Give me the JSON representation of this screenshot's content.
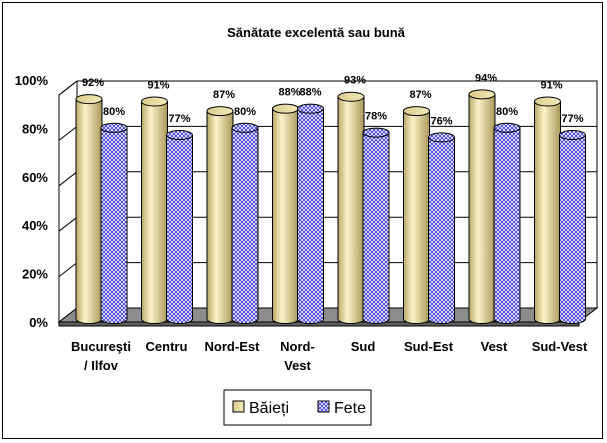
{
  "chart_data": {
    "type": "bar",
    "title": "Sănătate excelentă sau bună",
    "categories": [
      [
        "Bucureşti",
        "/ Ilfov"
      ],
      [
        "Centru"
      ],
      [
        "Nord-Est"
      ],
      [
        "Nord-",
        "Vest"
      ],
      [
        "Sud"
      ],
      [
        "Sud-Est"
      ],
      [
        "Vest"
      ],
      [
        "Sud-Vest"
      ]
    ],
    "series": [
      {
        "name": "Băieți",
        "values": [
          92,
          91,
          87,
          88,
          93,
          87,
          94,
          91
        ],
        "labels": [
          "92%",
          "91%",
          "87%",
          "88%",
          "93%",
          "87%",
          "94%",
          "91%"
        ],
        "color": "#efe3a8"
      },
      {
        "name": "Fete",
        "values": [
          80,
          77,
          80,
          88,
          78,
          76,
          80,
          77
        ],
        "labels": [
          "80%",
          "77%",
          "80%",
          "88%",
          "78%",
          "76%",
          "80%",
          "77%"
        ],
        "color": "#c9c9f5"
      }
    ],
    "ylim": [
      0,
      100
    ],
    "yticks": [
      "0%",
      "20%",
      "40%",
      "60%",
      "80%",
      "100%"
    ],
    "grid": true,
    "legend": "bottom"
  }
}
